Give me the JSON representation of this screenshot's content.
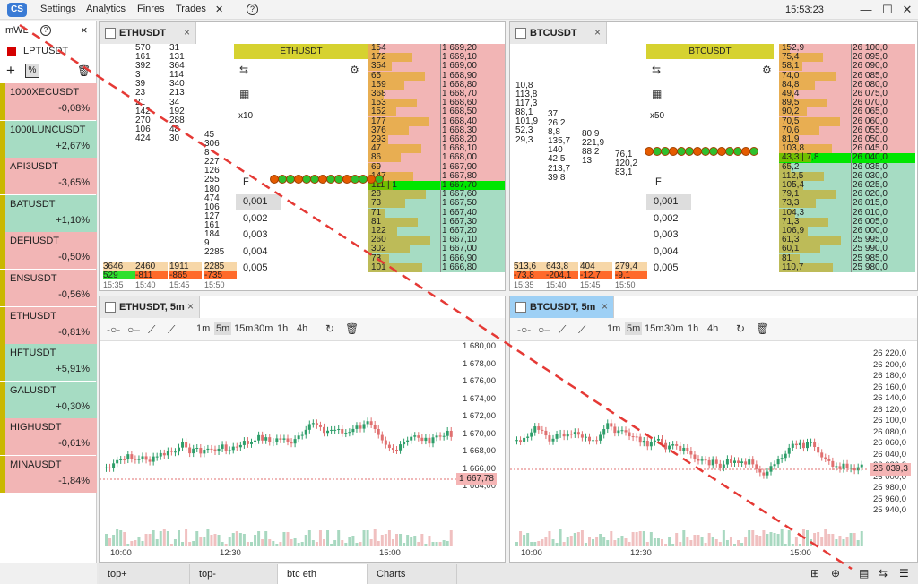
{
  "menu": {
    "settings": "Settings",
    "analytics": "Analytics",
    "finres": "Finres",
    "trades": "Trades",
    "help": "?",
    "clock": "15:53:23"
  },
  "sidebar": {
    "title": "mWL",
    "help": "?",
    "close": "×",
    "sub": "LPTUSDT",
    "add": "+",
    "items": [
      {
        "name": "1000XECUSDT",
        "change": "-0,08%",
        "up": false
      },
      {
        "name": "1000LUNCUSDT",
        "change": "+2,67%",
        "up": true
      },
      {
        "name": "API3USDT",
        "change": "-3,65%",
        "up": false
      },
      {
        "name": "BATUSDT",
        "change": "+1,10%",
        "up": true
      },
      {
        "name": "DEFIUSDT",
        "change": "-0,50%",
        "up": false
      },
      {
        "name": "ENSUSDT",
        "change": "-0,56%",
        "up": false
      },
      {
        "name": "ETHUSDT",
        "change": "-0,81%",
        "up": false
      },
      {
        "name": "HFTUSDT",
        "change": "+5,91%",
        "up": true
      },
      {
        "name": "GALUSDT",
        "change": "+0,30%",
        "up": true
      },
      {
        "name": "HIGHUSDT",
        "change": "-0,61%",
        "up": false
      },
      {
        "name": "MINAUSDT",
        "change": "-1,84%",
        "up": false
      }
    ]
  },
  "eth_ob": {
    "tab": "ETHUSDT",
    "header": "ETHUSDT",
    "mult": "x10",
    "f_label": "F",
    "steps": [
      "0,001",
      "0,002",
      "0,003",
      "0,004",
      "0,005"
    ],
    "c1": "",
    "c2": "570\n161\n392\n3\n39\n23\n21\n142\n270\n106\n424",
    "c3": "31\n131\n364\n114\n340\n213\n34\n192\n288\n48\n30",
    "c4": "45\n306\n8\n227\n126\n255\n180\n474\n106\n127\n161\n184\n9\n2285",
    "foot1": [
      "3646",
      "2460",
      "1911",
      "2285"
    ],
    "foot2": [
      "529",
      "-811",
      "-865",
      "-735"
    ],
    "times": [
      "15:35",
      "15:40",
      "15:45",
      "15:50"
    ],
    "vols": [
      "154",
      "172",
      "354",
      "65",
      "159",
      "368",
      "153",
      "152",
      "177",
      "376",
      "293",
      "47",
      "86",
      "69",
      "147",
      "111 | 1",
      "28",
      "73",
      "71",
      "81",
      "122",
      "260",
      "302",
      "73",
      "101"
    ],
    "prices": [
      "1 669,20",
      "1 669,10",
      "1 669,00",
      "1 668,90",
      "1 668,80",
      "1 668,70",
      "1 668,60",
      "1 668,50",
      "1 668,40",
      "1 668,30",
      "1 668,20",
      "1 668,10",
      "1 668,00",
      "1 667,90",
      "1 667,80",
      "1 667,70",
      "1 667,60",
      "1 667,50",
      "1 667,40",
      "1 667,30",
      "1 667,20",
      "1 667,10",
      "1 667,00",
      "1 666,90",
      "1 666,80"
    ]
  },
  "btc_ob": {
    "tab": "BTCUSDT",
    "header": "BTCUSDT",
    "mult": "x50",
    "f_label": "F",
    "steps": [
      "0,001",
      "0,002",
      "0,003",
      "0,004",
      "0,005"
    ],
    "c1": "10,8\n113,8\n117,3\n88,1\n101,9\n52,3\n29,3",
    "c2": "37\n26,2\n8,8\n135,7\n140\n42,5\n213,7\n39,8",
    "c3": "80,9\n221,9\n88,2\n13",
    "c4": "76,1\n120,2\n83,1",
    "foot1": [
      "513,6",
      "643,8",
      "404",
      "279,4"
    ],
    "foot2": [
      "-73,8",
      "-204,1",
      "-12,7",
      "-9,1"
    ],
    "times": [
      "15:35",
      "15:40",
      "15:45",
      "15:50"
    ],
    "vols": [
      "152,9",
      "75,4",
      "58,1",
      "74,0",
      "84,8",
      "49,4",
      "89,5",
      "90,2",
      "70,5",
      "70,6",
      "81,9",
      "103,8",
      "43,3 | 7,8",
      "65,2",
      "112,5",
      "105,4",
      "79,1",
      "73,3",
      "104,3",
      "71,3",
      "106,9",
      "61,3",
      "60,1",
      "81",
      "110,7"
    ],
    "prices": [
      "26 100,0",
      "26 095,0",
      "26 090,0",
      "26 085,0",
      "26 080,0",
      "26 075,0",
      "26 070,0",
      "26 065,0",
      "26 060,0",
      "26 055,0",
      "26 050,0",
      "26 045,0",
      "26 040,0",
      "26 035,0",
      "26 030,0",
      "26 025,0",
      "26 020,0",
      "26 015,0",
      "26 010,0",
      "26 005,0",
      "26 000,0",
      "25 995,0",
      "25 990,0",
      "25 985,0",
      "25 980,0"
    ]
  },
  "timeframes": [
    "1m",
    "5m",
    "15m",
    "30m",
    "1h",
    "4h"
  ],
  "eth_chart": {
    "tab": "ETHUSDT, 5m",
    "yticks": [
      "1 680,00",
      "1 678,00",
      "1 676,00",
      "1 674,00",
      "1 672,00",
      "1 670,00",
      "1 668,00",
      "1 666,00",
      "1 664,00"
    ],
    "xticks": [
      "10:00",
      "12:30",
      "15:00"
    ],
    "last": "1 667,78"
  },
  "btc_chart": {
    "tab": "BTCUSDT, 5m",
    "yticks": [
      "26 220,0",
      "26 200,0",
      "26 180,0",
      "26 160,0",
      "26 140,0",
      "26 120,0",
      "26 100,0",
      "26 080,0",
      "26 060,0",
      "26 040,0",
      "26 020,0",
      "26 000,0",
      "25 980,0",
      "25 960,0",
      "25 940,0"
    ],
    "xticks": [
      "10:00",
      "12:30",
      "15:00"
    ],
    "last": "26 039,3"
  },
  "bottom_tabs": [
    "top+",
    "top-",
    "btc eth",
    "Charts"
  ],
  "colors": {
    "bid": "#a6dcc3",
    "ask": "#f2b5b5",
    "green": "#00e600",
    "up": "#2e9e6a",
    "down": "#e07070",
    "accent": "#c9b800"
  }
}
